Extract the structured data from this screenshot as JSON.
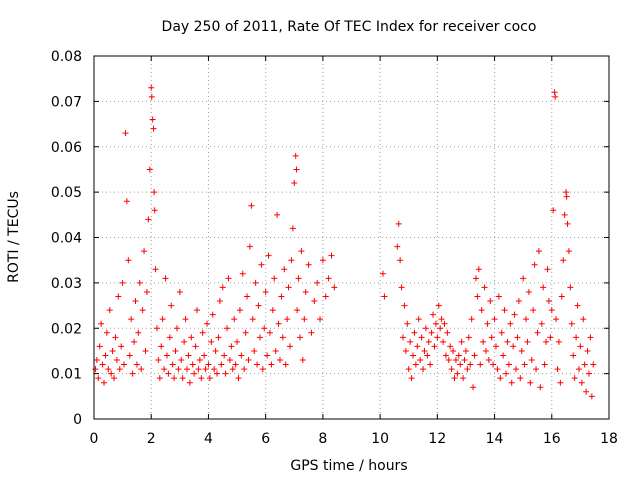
{
  "chart_data": {
    "type": "scatter",
    "title": "Day 250 of 2011, Rate Of TEC Index for receiver coco",
    "xlabel": "GPS time / hours",
    "ylabel": "ROTI / TECUs",
    "xlim": [
      0,
      18
    ],
    "ylim": [
      0,
      0.08
    ],
    "xticks": [
      0,
      2,
      4,
      6,
      8,
      10,
      12,
      14,
      16,
      18
    ],
    "xtick_labels": [
      "0",
      "2",
      "4",
      "6",
      "8",
      "10",
      "12",
      "14",
      "16",
      "18"
    ],
    "yticks": [
      0,
      0.01,
      0.02,
      0.03,
      0.04,
      0.05,
      0.06,
      0.07,
      0.08
    ],
    "ytick_labels": [
      "0",
      "0.01",
      "0.02",
      "0.03",
      "0.04",
      "0.05",
      "0.06",
      "0.07",
      "0.08"
    ],
    "grid": true,
    "marker": "+",
    "color": "#ff0000",
    "series": [
      {
        "name": "ROTI",
        "points": [
          [
            0.05,
            0.011
          ],
          [
            0.1,
            0.013
          ],
          [
            0.15,
            0.009
          ],
          [
            0.2,
            0.016
          ],
          [
            0.25,
            0.021
          ],
          [
            0.3,
            0.012
          ],
          [
            0.35,
            0.008
          ],
          [
            0.4,
            0.014
          ],
          [
            0.45,
            0.019
          ],
          [
            0.5,
            0.011
          ],
          [
            0.55,
            0.024
          ],
          [
            0.6,
            0.01
          ],
          [
            0.65,
            0.015
          ],
          [
            0.7,
            0.009
          ],
          [
            0.75,
            0.018
          ],
          [
            0.8,
            0.013
          ],
          [
            0.85,
            0.027
          ],
          [
            0.9,
            0.011
          ],
          [
            0.95,
            0.016
          ],
          [
            1.0,
            0.03
          ],
          [
            1.05,
            0.012
          ],
          [
            1.1,
            0.063
          ],
          [
            1.15,
            0.048
          ],
          [
            1.2,
            0.035
          ],
          [
            1.25,
            0.014
          ],
          [
            1.3,
            0.022
          ],
          [
            1.35,
            0.01
          ],
          [
            1.4,
            0.017
          ],
          [
            1.45,
            0.026
          ],
          [
            1.5,
            0.012
          ],
          [
            1.55,
            0.019
          ],
          [
            1.6,
            0.03
          ],
          [
            1.65,
            0.011
          ],
          [
            1.7,
            0.024
          ],
          [
            1.75,
            0.037
          ],
          [
            1.8,
            0.015
          ],
          [
            1.85,
            0.028
          ],
          [
            1.9,
            0.044
          ],
          [
            1.95,
            0.055
          ],
          [
            2.0,
            0.073
          ],
          [
            2.02,
            0.071
          ],
          [
            2.05,
            0.066
          ],
          [
            2.08,
            0.064
          ],
          [
            2.1,
            0.05
          ],
          [
            2.12,
            0.046
          ],
          [
            2.15,
            0.033
          ],
          [
            2.2,
            0.02
          ],
          [
            2.25,
            0.013
          ],
          [
            2.3,
            0.009
          ],
          [
            2.35,
            0.016
          ],
          [
            2.4,
            0.022
          ],
          [
            2.45,
            0.011
          ],
          [
            2.5,
            0.031
          ],
          [
            2.55,
            0.014
          ],
          [
            2.6,
            0.01
          ],
          [
            2.65,
            0.018
          ],
          [
            2.7,
            0.025
          ],
          [
            2.75,
            0.012
          ],
          [
            2.8,
            0.009
          ],
          [
            2.85,
            0.015
          ],
          [
            2.9,
            0.02
          ],
          [
            2.95,
            0.011
          ],
          [
            3.0,
            0.028
          ],
          [
            3.05,
            0.013
          ],
          [
            3.1,
            0.009
          ],
          [
            3.15,
            0.017
          ],
          [
            3.2,
            0.022
          ],
          [
            3.25,
            0.011
          ],
          [
            3.3,
            0.014
          ],
          [
            3.35,
            0.008
          ],
          [
            3.4,
            0.018
          ],
          [
            3.45,
            0.012
          ],
          [
            3.5,
            0.01
          ],
          [
            3.55,
            0.016
          ],
          [
            3.6,
            0.024
          ],
          [
            3.65,
            0.011
          ],
          [
            3.7,
            0.013
          ],
          [
            3.75,
            0.009
          ],
          [
            3.8,
            0.019
          ],
          [
            3.85,
            0.014
          ],
          [
            3.9,
            0.011
          ],
          [
            3.95,
            0.021
          ],
          [
            4.0,
            0.012
          ],
          [
            4.05,
            0.009
          ],
          [
            4.1,
            0.017
          ],
          [
            4.15,
            0.023
          ],
          [
            4.2,
            0.011
          ],
          [
            4.25,
            0.015
          ],
          [
            4.3,
            0.01
          ],
          [
            4.35,
            0.018
          ],
          [
            4.4,
            0.026
          ],
          [
            4.45,
            0.012
          ],
          [
            4.5,
            0.029
          ],
          [
            4.55,
            0.014
          ],
          [
            4.6,
            0.01
          ],
          [
            4.65,
            0.02
          ],
          [
            4.7,
            0.031
          ],
          [
            4.75,
            0.013
          ],
          [
            4.8,
            0.016
          ],
          [
            4.85,
            0.011
          ],
          [
            4.9,
            0.022
          ],
          [
            4.95,
            0.012
          ],
          [
            5.0,
            0.017
          ],
          [
            5.05,
            0.009
          ],
          [
            5.1,
            0.024
          ],
          [
            5.15,
            0.014
          ],
          [
            5.2,
            0.032
          ],
          [
            5.25,
            0.011
          ],
          [
            5.3,
            0.019
          ],
          [
            5.35,
            0.027
          ],
          [
            5.4,
            0.013
          ],
          [
            5.45,
            0.038
          ],
          [
            5.5,
            0.047
          ],
          [
            5.55,
            0.022
          ],
          [
            5.6,
            0.015
          ],
          [
            5.65,
            0.03
          ],
          [
            5.7,
            0.012
          ],
          [
            5.75,
            0.025
          ],
          [
            5.8,
            0.018
          ],
          [
            5.85,
            0.034
          ],
          [
            5.9,
            0.011
          ],
          [
            5.95,
            0.02
          ],
          [
            6.0,
            0.028
          ],
          [
            6.05,
            0.014
          ],
          [
            6.1,
            0.036
          ],
          [
            6.15,
            0.019
          ],
          [
            6.2,
            0.012
          ],
          [
            6.25,
            0.024
          ],
          [
            6.3,
            0.031
          ],
          [
            6.35,
            0.015
          ],
          [
            6.4,
            0.045
          ],
          [
            6.45,
            0.021
          ],
          [
            6.5,
            0.013
          ],
          [
            6.55,
            0.027
          ],
          [
            6.6,
            0.018
          ],
          [
            6.65,
            0.033
          ],
          [
            6.7,
            0.012
          ],
          [
            6.75,
            0.022
          ],
          [
            6.8,
            0.029
          ],
          [
            6.85,
            0.016
          ],
          [
            6.9,
            0.035
          ],
          [
            6.95,
            0.042
          ],
          [
            7.0,
            0.052
          ],
          [
            7.05,
            0.058
          ],
          [
            7.08,
            0.055
          ],
          [
            7.1,
            0.024
          ],
          [
            7.15,
            0.031
          ],
          [
            7.2,
            0.018
          ],
          [
            7.25,
            0.037
          ],
          [
            7.3,
            0.013
          ],
          [
            7.35,
            0.022
          ],
          [
            7.4,
            0.028
          ],
          [
            7.5,
            0.034
          ],
          [
            7.6,
            0.019
          ],
          [
            7.7,
            0.026
          ],
          [
            7.8,
            0.03
          ],
          [
            7.9,
            0.022
          ],
          [
            8.0,
            0.035
          ],
          [
            8.1,
            0.027
          ],
          [
            8.2,
            0.031
          ],
          [
            8.3,
            0.036
          ],
          [
            8.4,
            0.029
          ],
          [
            10.1,
            0.032
          ],
          [
            10.15,
            0.027
          ],
          [
            10.6,
            0.038
          ],
          [
            10.65,
            0.043
          ],
          [
            10.7,
            0.035
          ],
          [
            10.75,
            0.029
          ],
          [
            10.8,
            0.018
          ],
          [
            10.85,
            0.025
          ],
          [
            10.9,
            0.015
          ],
          [
            10.95,
            0.021
          ],
          [
            11.0,
            0.011
          ],
          [
            11.05,
            0.017
          ],
          [
            11.1,
            0.009
          ],
          [
            11.15,
            0.014
          ],
          [
            11.2,
            0.019
          ],
          [
            11.25,
            0.012
          ],
          [
            11.3,
            0.016
          ],
          [
            11.35,
            0.022
          ],
          [
            11.4,
            0.013
          ],
          [
            11.45,
            0.018
          ],
          [
            11.5,
            0.011
          ],
          [
            11.55,
            0.015
          ],
          [
            11.6,
            0.02
          ],
          [
            11.65,
            0.014
          ],
          [
            11.7,
            0.017
          ],
          [
            11.75,
            0.012
          ],
          [
            11.8,
            0.019
          ],
          [
            11.85,
            0.023
          ],
          [
            11.9,
            0.016
          ],
          [
            11.95,
            0.021
          ],
          [
            12.0,
            0.018
          ],
          [
            12.05,
            0.025
          ],
          [
            12.1,
            0.02
          ],
          [
            12.15,
            0.022
          ],
          [
            12.2,
            0.017
          ],
          [
            12.25,
            0.021
          ],
          [
            12.3,
            0.014
          ],
          [
            12.35,
            0.019
          ],
          [
            12.4,
            0.013
          ],
          [
            12.45,
            0.016
          ],
          [
            12.5,
            0.011
          ],
          [
            12.55,
            0.015
          ],
          [
            12.6,
            0.009
          ],
          [
            12.65,
            0.013
          ],
          [
            12.7,
            0.01
          ],
          [
            12.75,
            0.014
          ],
          [
            12.8,
            0.012
          ],
          [
            12.85,
            0.017
          ],
          [
            12.9,
            0.009
          ],
          [
            12.95,
            0.013
          ],
          [
            13.0,
            0.015
          ],
          [
            13.05,
            0.011
          ],
          [
            13.1,
            0.018
          ],
          [
            13.15,
            0.012
          ],
          [
            13.2,
            0.022
          ],
          [
            13.25,
            0.007
          ],
          [
            13.3,
            0.014
          ],
          [
            13.35,
            0.031
          ],
          [
            13.4,
            0.027
          ],
          [
            13.45,
            0.033
          ],
          [
            13.5,
            0.012
          ],
          [
            13.55,
            0.024
          ],
          [
            13.6,
            0.017
          ],
          [
            13.65,
            0.029
          ],
          [
            13.7,
            0.015
          ],
          [
            13.75,
            0.021
          ],
          [
            13.8,
            0.013
          ],
          [
            13.85,
            0.026
          ],
          [
            13.9,
            0.018
          ],
          [
            13.95,
            0.012
          ],
          [
            14.0,
            0.022
          ],
          [
            14.05,
            0.016
          ],
          [
            14.1,
            0.011
          ],
          [
            14.15,
            0.027
          ],
          [
            14.2,
            0.009
          ],
          [
            14.25,
            0.019
          ],
          [
            14.3,
            0.014
          ],
          [
            14.35,
            0.024
          ],
          [
            14.4,
            0.01
          ],
          [
            14.45,
            0.017
          ],
          [
            14.5,
            0.012
          ],
          [
            14.55,
            0.021
          ],
          [
            14.6,
            0.008
          ],
          [
            14.65,
            0.016
          ],
          [
            14.7,
            0.023
          ],
          [
            14.75,
            0.011
          ],
          [
            14.8,
            0.018
          ],
          [
            14.85,
            0.026
          ],
          [
            14.9,
            0.009
          ],
          [
            14.95,
            0.015
          ],
          [
            15.0,
            0.031
          ],
          [
            15.05,
            0.012
          ],
          [
            15.1,
            0.022
          ],
          [
            15.15,
            0.017
          ],
          [
            15.2,
            0.028
          ],
          [
            15.25,
            0.008
          ],
          [
            15.3,
            0.013
          ],
          [
            15.35,
            0.024
          ],
          [
            15.4,
            0.034
          ],
          [
            15.45,
            0.011
          ],
          [
            15.5,
            0.019
          ],
          [
            15.55,
            0.037
          ],
          [
            15.6,
            0.007
          ],
          [
            15.65,
            0.021
          ],
          [
            15.7,
            0.029
          ],
          [
            15.75,
            0.012
          ],
          [
            15.8,
            0.017
          ],
          [
            15.85,
            0.033
          ],
          [
            15.9,
            0.026
          ],
          [
            15.95,
            0.018
          ],
          [
            16.0,
            0.024
          ],
          [
            16.05,
            0.046
          ],
          [
            16.1,
            0.072
          ],
          [
            16.12,
            0.071
          ],
          [
            16.15,
            0.022
          ],
          [
            16.2,
            0.011
          ],
          [
            16.25,
            0.017
          ],
          [
            16.3,
            0.008
          ],
          [
            16.35,
            0.027
          ],
          [
            16.4,
            0.035
          ],
          [
            16.45,
            0.045
          ],
          [
            16.5,
            0.05
          ],
          [
            16.52,
            0.049
          ],
          [
            16.55,
            0.043
          ],
          [
            16.6,
            0.037
          ],
          [
            16.65,
            0.029
          ],
          [
            16.7,
            0.021
          ],
          [
            16.75,
            0.014
          ],
          [
            16.8,
            0.009
          ],
          [
            16.85,
            0.018
          ],
          [
            16.9,
            0.025
          ],
          [
            16.95,
            0.011
          ],
          [
            17.0,
            0.016
          ],
          [
            17.05,
            0.008
          ],
          [
            17.1,
            0.022
          ],
          [
            17.15,
            0.012
          ],
          [
            17.2,
            0.006
          ],
          [
            17.25,
            0.015
          ],
          [
            17.3,
            0.01
          ],
          [
            17.35,
            0.018
          ],
          [
            17.4,
            0.005
          ],
          [
            17.45,
            0.012
          ]
        ]
      }
    ]
  }
}
